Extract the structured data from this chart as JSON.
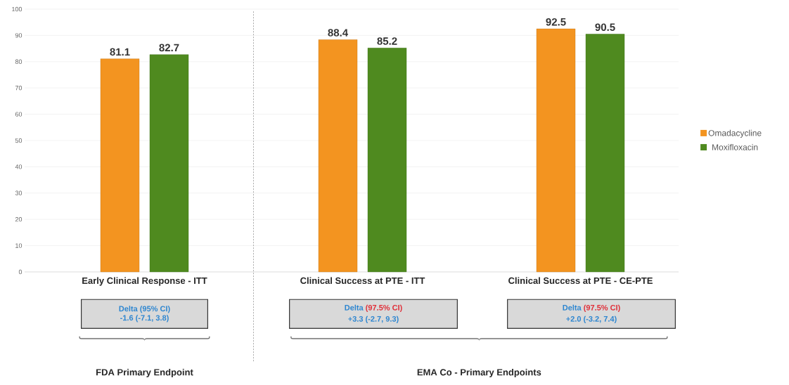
{
  "chart_data": {
    "type": "bar",
    "categories": [
      "Early Clinical  Response - ITT",
      "Clinical Success at PTE - ITT",
      "Clinical Success at PTE - CE-PTE"
    ],
    "series": [
      {
        "name": "Omadacycline",
        "color": "#f39420",
        "values": [
          81.1,
          88.4,
          92.5
        ]
      },
      {
        "name": "Moxifloxacin",
        "color": "#4f8a1f",
        "values": [
          82.7,
          85.2,
          90.5
        ]
      }
    ],
    "ylim": [
      0,
      100
    ],
    "yticks": [
      0,
      10,
      20,
      30,
      40,
      50,
      60,
      70,
      80,
      90,
      100
    ],
    "grid": "y",
    "legend": "right",
    "data_labels": true,
    "annotations": [
      "Delta",
      "(95% CI)",
      "-1.6 (-7.1, 3.8)",
      "Delta",
      "(97.5% CI)",
      "+3.3 (-2.7, 9.3)",
      "Delta",
      "(97.5% CI)",
      "+2.0 (-3.2, 7.4)",
      "FDA Primary Endpoint",
      "EMA Co - Primary Endpoints"
    ]
  }
}
